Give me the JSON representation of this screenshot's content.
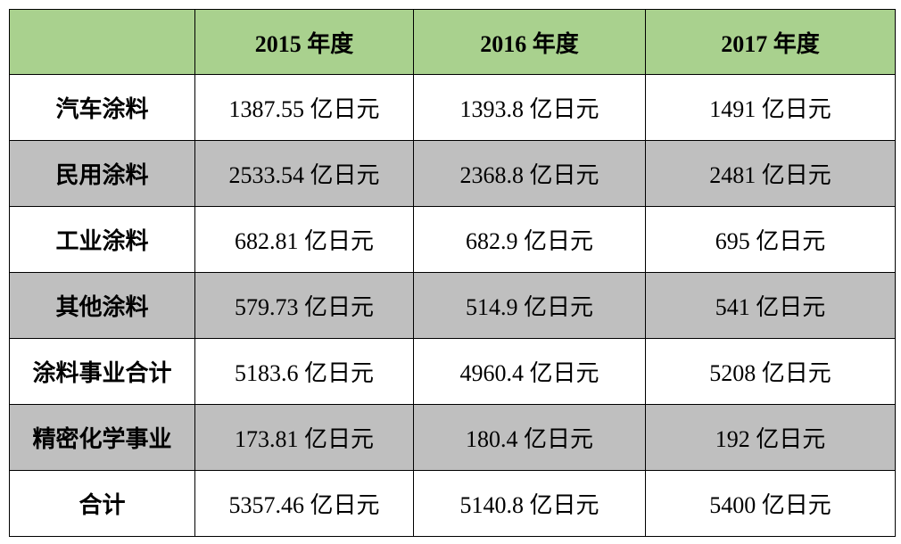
{
  "table": {
    "header": [
      "2015 年度",
      "2016 年度",
      "2017 年度"
    ],
    "rows": [
      [
        "汽车涂料",
        "1387.55 亿日元",
        "1393.8 亿日元",
        "1491 亿日元"
      ],
      [
        "民用涂料",
        "2533.54 亿日元",
        "2368.8 亿日元",
        "2481 亿日元"
      ],
      [
        "工业涂料",
        "682.81 亿日元",
        "682.9 亿日元",
        "695 亿日元"
      ],
      [
        "其他涂料",
        "579.73 亿日元",
        "514.9 亿日元",
        "541 亿日元"
      ],
      [
        "涂料事业合计",
        "5183.6 亿日元",
        "4960.4 亿日元",
        "5208 亿日元"
      ],
      [
        "精密化学事业",
        "173.81 亿日元",
        "180.4 亿日元",
        "192 亿日元"
      ],
      [
        "合计",
        "5357.46 亿日元",
        "5140.8 亿日元",
        "5400 亿日元"
      ]
    ]
  }
}
